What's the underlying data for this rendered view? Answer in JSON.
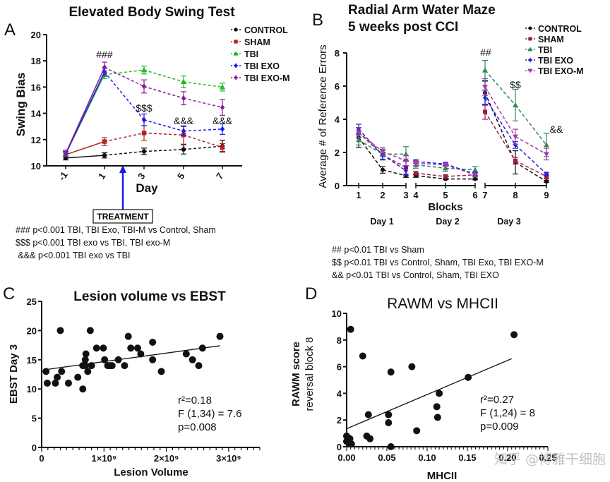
{
  "chart_data": [
    {
      "panel": "A",
      "type": "line",
      "title": "Elevated Body Swing Test",
      "xlabel": "Day",
      "ylabel": "Swing Bias",
      "categories": [
        "-1",
        "1",
        "3",
        "5",
        "7"
      ],
      "ylim": [
        10,
        20
      ],
      "yticks": [
        10,
        12,
        14,
        16,
        18,
        20
      ],
      "legend_position": "top-right",
      "series": [
        {
          "name": "CONTROL",
          "color": "#111111",
          "marker": "circle",
          "values": [
            10.6,
            10.8,
            11.1,
            11.25,
            11.5
          ],
          "errors": [
            0.15,
            0.2,
            0.25,
            0.35,
            0.45
          ]
        },
        {
          "name": "SHAM",
          "color": "#b22222",
          "marker": "square",
          "values": [
            10.85,
            11.85,
            12.5,
            12.35,
            11.4
          ],
          "errors": [
            0.15,
            0.3,
            0.55,
            0.7,
            0.3
          ]
        },
        {
          "name": "TBI",
          "color": "#22bb22",
          "marker": "triangle",
          "values": [
            10.9,
            16.95,
            17.3,
            16.4,
            16.0
          ],
          "errors": [
            0.2,
            0.3,
            0.3,
            0.45,
            0.3
          ]
        },
        {
          "name": "TBI EXO",
          "color": "#1a1aee",
          "marker": "diamond",
          "values": [
            10.9,
            17.15,
            13.5,
            12.65,
            12.8
          ],
          "errors": [
            0.2,
            0.3,
            0.45,
            0.35,
            0.4
          ]
        },
        {
          "name": "TBI EXO-M",
          "color": "#8b1a9b",
          "marker": "diamond",
          "values": [
            10.95,
            17.5,
            16.05,
            15.15,
            14.45
          ],
          "errors": [
            0.25,
            0.4,
            0.5,
            0.5,
            0.6
          ]
        }
      ],
      "annotations": [
        {
          "text": "###",
          "x": "1"
        },
        {
          "text": "$$$",
          "x": "3"
        },
        {
          "text": "&&&",
          "x": "5"
        },
        {
          "text": "&&&",
          "x": "7"
        }
      ],
      "treatment_label": "TREATMENT",
      "notes": [
        "### p<0.001 TBI, TBI Exo, TBI-M  vs Control, Sham",
        "$$$ p<0.001   TBI exo vs TBI, TBI exo-M",
        " &&& p<0.001 TBI exo vs TBI"
      ]
    },
    {
      "panel": "B",
      "type": "line",
      "title": [
        "Radial Arm Water Maze",
        "5 weeks post CCI"
      ],
      "xlabel": "Blocks",
      "ylabel": "Average # of Reference Errors",
      "categories": [
        "1",
        "2",
        "3",
        "4",
        "5",
        "6",
        "7",
        "8",
        "9"
      ],
      "ylim": [
        0,
        8
      ],
      "yticks": [
        0,
        2,
        4,
        6,
        8
      ],
      "day_groups": [
        {
          "label": "Day 1",
          "blocks": [
            "1",
            "2",
            "3"
          ]
        },
        {
          "label": "Day 2",
          "blocks": [
            "4",
            "5",
            "6"
          ]
        },
        {
          "label": "Day 3",
          "blocks": [
            "7",
            "8",
            "9"
          ]
        }
      ],
      "legend_position": "top-right",
      "series": [
        {
          "name": "CONTROL",
          "color": "#111111",
          "marker": "circle",
          "values": [
            2.9,
            0.95,
            0.6,
            0.6,
            0.4,
            0.4,
            5.6,
            1.4,
            0.25
          ],
          "errors": [
            0.6,
            0.2,
            0.1,
            0.1,
            0.05,
            0.05,
            0.7,
            0.7,
            0.05
          ]
        },
        {
          "name": "SHAM",
          "color": "#9b1b4b",
          "marker": "square",
          "values": [
            3.2,
            1.85,
            1.1,
            0.75,
            0.55,
            0.65,
            4.45,
            1.5,
            0.55
          ],
          "errors": [
            0.3,
            0.3,
            0.4,
            0.1,
            0.1,
            0.1,
            0.45,
            0.2,
            0.15
          ]
        },
        {
          "name": "TBI",
          "color": "#2e8b57",
          "marker": "triangle",
          "values": [
            2.75,
            1.9,
            1.9,
            1.25,
            1.05,
            0.95,
            6.95,
            4.85,
            2.45
          ],
          "errors": [
            0.3,
            0.3,
            0.45,
            0.2,
            0.2,
            0.2,
            0.6,
            0.95,
            0.7
          ]
        },
        {
          "name": "TBI EXO",
          "color": "#2222dd",
          "marker": "diamond",
          "values": [
            3.4,
            1.85,
            0.9,
            1.45,
            1.3,
            0.7,
            5.3,
            2.45,
            0.7
          ],
          "errors": [
            0.3,
            0.3,
            0.3,
            0.1,
            0.1,
            0.1,
            0.45,
            0.2,
            0.1
          ]
        },
        {
          "name": "TBI EXO-M",
          "color": "#a03ca8",
          "marker": "triangle-down",
          "values": [
            3.2,
            2.05,
            1.5,
            1.35,
            1.25,
            0.65,
            5.95,
            2.95,
            1.9
          ],
          "errors": [
            0.3,
            0.25,
            0.3,
            0.15,
            0.1,
            0.1,
            0.5,
            0.45,
            0.35
          ]
        }
      ],
      "annotations": [
        {
          "text": "##",
          "x": "7"
        },
        {
          "text": "$$",
          "x": "8"
        },
        {
          "text": "&&",
          "x": "9"
        }
      ],
      "notes": [
        "## p<0.01 TBI vs Sham",
        "$$ p<0.01 TBI vs Control, Sham, TBI Exo, TBI EXO-M",
        "&& p<0.01 TBI vs Control, Sham, TBI EXO"
      ]
    },
    {
      "panel": "C",
      "type": "scatter",
      "title": "Lesion volume vs EBST",
      "xlabel": "Lesion Volume",
      "ylabel": "EBST Day 3",
      "xlim": [
        0,
        3500000000.0
      ],
      "ylim": [
        0,
        25
      ],
      "xticks": [
        0,
        1000000000.0,
        2000000000.0,
        3000000000.0
      ],
      "xtick_labels": [
        "0",
        "1×10⁹",
        "2×10⁹",
        "3×10⁹"
      ],
      "yticks": [
        0,
        5,
        10,
        15,
        20,
        25
      ],
      "points": [
        [
          70000000.0,
          13
        ],
        [
          90000000.0,
          11
        ],
        [
          220000000.0,
          11
        ],
        [
          250000000.0,
          12
        ],
        [
          300000000.0,
          20
        ],
        [
          320000000.0,
          13
        ],
        [
          430000000.0,
          11
        ],
        [
          580000000.0,
          12
        ],
        [
          660000000.0,
          10
        ],
        [
          660000000.0,
          14
        ],
        [
          700000000.0,
          15
        ],
        [
          710000000.0,
          16
        ],
        [
          700000000.0,
          14
        ],
        [
          740000000.0,
          13
        ],
        [
          780000000.0,
          20
        ],
        [
          800000000.0,
          14
        ],
        [
          880000000.0,
          17
        ],
        [
          990000000.0,
          17
        ],
        [
          1010000000.0,
          15
        ],
        [
          1060000000.0,
          14
        ],
        [
          1100000000.0,
          14
        ],
        [
          1130000000.0,
          14
        ],
        [
          1230000000.0,
          15
        ],
        [
          1330000000.0,
          14
        ],
        [
          1390000000.0,
          19
        ],
        [
          1430000000.0,
          17
        ],
        [
          1540000000.0,
          17
        ],
        [
          1590000000.0,
          16
        ],
        [
          1780000000.0,
          18
        ],
        [
          1780000000.0,
          15
        ],
        [
          1920000000.0,
          13
        ],
        [
          2320000000.0,
          16
        ],
        [
          2420000000.0,
          15
        ],
        [
          2520000000.0,
          14
        ],
        [
          2580000000.0,
          17
        ],
        [
          2860000000.0,
          19
        ]
      ],
      "regression": {
        "x": [
          50000000.0,
          2860000000.0
        ],
        "y": [
          13.3,
          17.4
        ]
      },
      "stats": [
        "r²=0.18",
        "F (1,34) = 7.6",
        "p=0.008"
      ]
    },
    {
      "panel": "D",
      "type": "scatter",
      "title": "RAWM vs MHCII",
      "xlabel": "MHCII",
      "ylabel": [
        "RAWM score",
        "reversal block 8"
      ],
      "xlim": [
        0,
        0.25
      ],
      "ylim": [
        0,
        10
      ],
      "xticks": [
        0,
        0.05,
        0.1,
        0.15,
        0.2,
        0.25
      ],
      "xtick_labels": [
        "0.00",
        "0.05",
        "0.10",
        "0.15",
        "0.20",
        "0.25"
      ],
      "yticks": [
        0,
        2,
        4,
        6,
        8,
        10
      ],
      "points": [
        [
          0.0,
          0.8
        ],
        [
          0.0,
          0.4
        ],
        [
          0.004,
          0.6
        ],
        [
          0.003,
          0.3
        ],
        [
          0.006,
          0.2
        ],
        [
          0.005,
          8.8
        ],
        [
          0.02,
          6.8
        ],
        [
          0.025,
          0.8
        ],
        [
          0.027,
          2.4
        ],
        [
          0.029,
          0.6
        ],
        [
          0.052,
          2.4
        ],
        [
          0.052,
          1.8
        ],
        [
          0.055,
          5.6
        ],
        [
          0.055,
          0.0
        ],
        [
          0.081,
          6.0
        ],
        [
          0.087,
          1.2
        ],
        [
          0.112,
          3.0
        ],
        [
          0.113,
          2.2
        ],
        [
          0.115,
          4.0
        ],
        [
          0.151,
          5.2
        ],
        [
          0.208,
          8.4
        ]
      ],
      "regression": {
        "x": [
          0.0,
          0.205
        ],
        "y": [
          1.35,
          6.6
        ]
      },
      "stats": [
        "r²=0.27",
        "F (1,24) = 8",
        "p=0.009"
      ]
    }
  ],
  "panels": {
    "a": {
      "letter": "A"
    },
    "b": {
      "letter": "B"
    },
    "c": {
      "letter": "C"
    },
    "d": {
      "letter": "D"
    }
  },
  "watermark": "知乎 @博雅干细胞"
}
